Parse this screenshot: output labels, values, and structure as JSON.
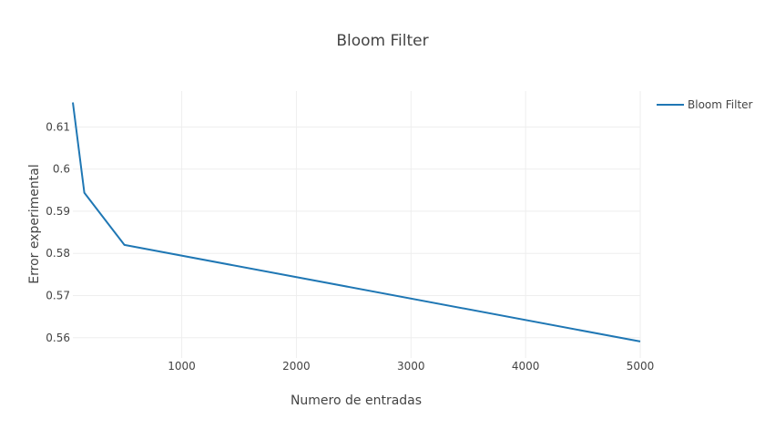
{
  "chart_data": {
    "type": "line",
    "title": "Bloom Filter",
    "xlabel": "Numero de entradas",
    "ylabel": "Error experimental",
    "xlim": [
      50,
      5000
    ],
    "ylim": [
      0.5552,
      0.6185
    ],
    "x_ticks": [
      1000,
      2000,
      3000,
      4000,
      5000
    ],
    "y_ticks": [
      0.56,
      0.57,
      0.58,
      0.59,
      0.6,
      0.61
    ],
    "y_tick_labels": [
      "0.56",
      "0.57",
      "0.58",
      "0.59",
      "0.6",
      "0.61"
    ],
    "grid": true,
    "legend_position": "top-right",
    "series": [
      {
        "name": "Bloom Filter",
        "color": "#1f77b4",
        "x": [
          50,
          150,
          500,
          5000
        ],
        "y": [
          0.6158,
          0.5944,
          0.582,
          0.5591
        ]
      }
    ]
  }
}
